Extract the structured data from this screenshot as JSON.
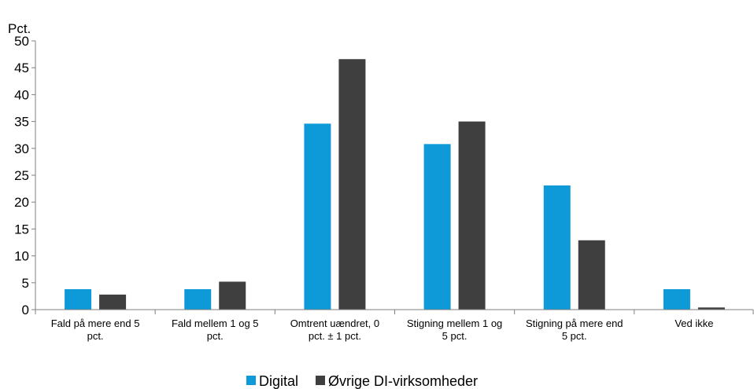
{
  "chart_data": {
    "type": "bar",
    "ylabel": "Pct.",
    "ylim": [
      0,
      50
    ],
    "yticks": [
      0,
      5,
      10,
      15,
      20,
      25,
      30,
      35,
      40,
      45,
      50
    ],
    "grid": false,
    "legend_position": "bottom-center",
    "categories": [
      [
        "Fald på mere end 5",
        "pct."
      ],
      [
        "Fald mellem 1 og 5",
        "pct."
      ],
      [
        "Omtrent uændret, 0",
        "pct. ± 1 pct."
      ],
      [
        "Stigning mellem 1 og",
        "5 pct."
      ],
      [
        "Stigning på mere end",
        "5 pct."
      ],
      [
        "Ved ikke"
      ]
    ],
    "series": [
      {
        "name": "Digital",
        "color": "#0e9ad8",
        "values": [
          3.8,
          3.8,
          34.6,
          30.8,
          23.1,
          3.8
        ]
      },
      {
        "name": "Øvrige DI-virksomheder",
        "color": "#3f3f3f",
        "values": [
          2.8,
          5.2,
          46.6,
          35.0,
          12.9,
          0.4
        ]
      }
    ]
  }
}
